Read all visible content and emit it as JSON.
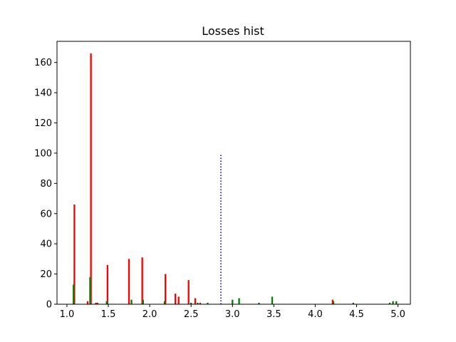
{
  "chart_data": {
    "type": "bar",
    "title": "Losses hist",
    "xlabel": "",
    "ylabel": "",
    "xlim": [
      0.88,
      5.15
    ],
    "ylim": [
      0,
      174
    ],
    "x_ticks": [
      1.0,
      1.5,
      2.0,
      2.5,
      3.0,
      3.5,
      4.0,
      4.5,
      5.0
    ],
    "x_tick_labels": [
      "1.0",
      "1.5",
      "2.0",
      "2.5",
      "3.0",
      "3.5",
      "4.0",
      "4.5",
      "5.0"
    ],
    "y_ticks": [
      0,
      20,
      40,
      60,
      80,
      100,
      120,
      140,
      160
    ],
    "y_tick_labels": [
      "0",
      "20",
      "40",
      "60",
      "80",
      "100",
      "120",
      "140",
      "160"
    ],
    "grid": false,
    "bin_width": 0.02,
    "colors": {
      "red": "#ff0000",
      "green": "#008000",
      "threshold": "#0000ff"
    },
    "series": [
      {
        "color": "#ff0000",
        "bars": [
          {
            "x": 1.09,
            "y": 66
          },
          {
            "x": 1.25,
            "y": 2
          },
          {
            "x": 1.29,
            "y": 166
          },
          {
            "x": 1.35,
            "y": 1
          },
          {
            "x": 1.37,
            "y": 1
          },
          {
            "x": 1.49,
            "y": 26
          },
          {
            "x": 1.75,
            "y": 30
          },
          {
            "x": 1.91,
            "y": 31
          },
          {
            "x": 2.19,
            "y": 20
          },
          {
            "x": 2.31,
            "y": 7
          },
          {
            "x": 2.35,
            "y": 5
          },
          {
            "x": 2.47,
            "y": 16
          },
          {
            "x": 2.55,
            "y": 4
          },
          {
            "x": 2.61,
            "y": 1
          },
          {
            "x": 4.21,
            "y": 3
          }
        ]
      },
      {
        "color": "#008000",
        "bars": [
          {
            "x": 1.08,
            "y": 13
          },
          {
            "x": 1.28,
            "y": 18
          },
          {
            "x": 1.48,
            "y": 2
          },
          {
            "x": 1.78,
            "y": 3
          },
          {
            "x": 1.92,
            "y": 3
          },
          {
            "x": 2.18,
            "y": 2
          },
          {
            "x": 2.5,
            "y": 1
          },
          {
            "x": 2.58,
            "y": 1
          },
          {
            "x": 2.7,
            "y": 1
          },
          {
            "x": 3.0,
            "y": 3
          },
          {
            "x": 3.08,
            "y": 4
          },
          {
            "x": 3.32,
            "y": 1
          },
          {
            "x": 3.48,
            "y": 5
          },
          {
            "x": 4.22,
            "y": 2
          },
          {
            "x": 4.46,
            "y": 1
          },
          {
            "x": 4.9,
            "y": 1
          },
          {
            "x": 4.94,
            "y": 2
          },
          {
            "x": 4.98,
            "y": 2
          }
        ]
      }
    ],
    "threshold_line": {
      "x": 2.86,
      "y_min": 0,
      "y_max": 100,
      "style": "dotted",
      "color": "#0000ff"
    }
  }
}
